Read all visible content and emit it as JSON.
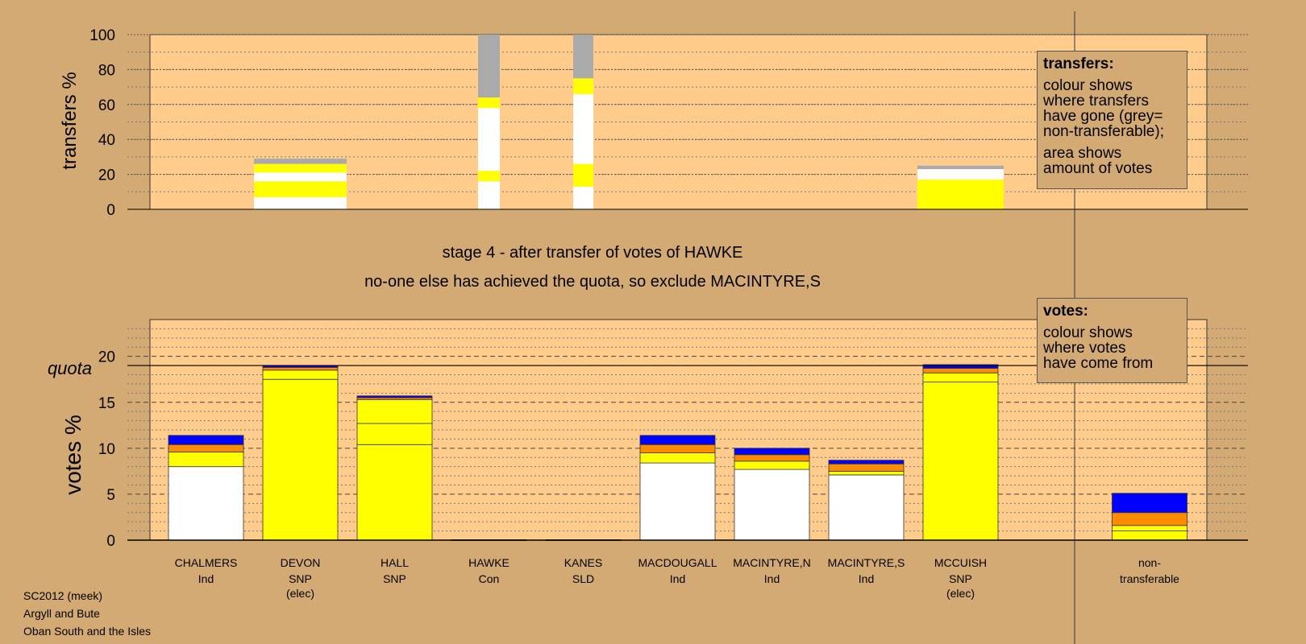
{
  "stage_title": "stage 4 - after transfer of votes of HAWKE",
  "stage_subtitle": "no-one else has achieved the quota, so exclude MACINTYRE,S",
  "footer": {
    "line1": "SC2012 (meek)",
    "line2": "Argyll and Bute",
    "line3": "Oban South and the Isles"
  },
  "transfers_legend": {
    "title": "transfers:",
    "line1": "colour shows",
    "line2": "where transfers",
    "line3": "have gone (grey=",
    "line4": "non-transferable);",
    "line5": "area shows",
    "line6": "amount of votes"
  },
  "votes_legend": {
    "title": "votes:",
    "line1": "colour shows",
    "line2": "where votes",
    "line3": "have come from"
  },
  "colors": {
    "background": "#d4aa74",
    "panel": "#ffcc8c",
    "Ind": "#ffffff",
    "SNP": "#ffff00",
    "Con": "#0000ff",
    "SLD": "#ff8c00",
    "non_transferable": "#aaaaaa"
  },
  "chart_data": [
    {
      "type": "bar",
      "stacked": true,
      "ylabel": "transfers %",
      "ylim": [
        0,
        100
      ],
      "yticks": [
        0,
        20,
        40,
        60,
        80,
        100
      ],
      "grid": true,
      "categories": [
        "CHALMERS",
        "DEVON",
        "HALL",
        "HAWKE",
        "KANES",
        "MACDOUGALL",
        "MACINTYRE,N",
        "MACINTYRE,S",
        "MCCUISH"
      ],
      "bars": [
        {
          "candidate": "DEVON",
          "segments": [
            {
              "color": "#ffffff",
              "from": 0,
              "to": 7
            },
            {
              "color": "#ffff00",
              "from": 7,
              "to": 16
            },
            {
              "color": "#ffffff",
              "from": 16,
              "to": 21
            },
            {
              "color": "#ffff00",
              "from": 21,
              "to": 26
            },
            {
              "color": "#aaaaaa",
              "from": 26,
              "to": 29
            }
          ]
        },
        {
          "candidate": "HAWKE",
          "segments": [
            {
              "color": "#ffffff",
              "from": 0,
              "to": 16
            },
            {
              "color": "#ffff00",
              "from": 16,
              "to": 22
            },
            {
              "color": "#ffffff",
              "from": 22,
              "to": 58
            },
            {
              "color": "#ffff00",
              "from": 58,
              "to": 64
            },
            {
              "color": "#aaaaaa",
              "from": 64,
              "to": 100
            }
          ]
        },
        {
          "candidate": "KANES",
          "segments": [
            {
              "color": "#ffffff",
              "from": 0,
              "to": 13
            },
            {
              "color": "#ffff00",
              "from": 13,
              "to": 26
            },
            {
              "color": "#ffffff",
              "from": 26,
              "to": 66
            },
            {
              "color": "#ffff00",
              "from": 66,
              "to": 75
            },
            {
              "color": "#aaaaaa",
              "from": 75,
              "to": 100
            }
          ]
        },
        {
          "candidate": "MCCUISH",
          "segments": [
            {
              "color": "#ffff00",
              "from": 0,
              "to": 17
            },
            {
              "color": "#ffffff",
              "from": 17,
              "to": 23
            },
            {
              "color": "#aaaaaa",
              "from": 23,
              "to": 25
            }
          ]
        }
      ]
    },
    {
      "type": "bar",
      "stacked": true,
      "ylabel": "votes %",
      "ylim": [
        0,
        24
      ],
      "yticks": [
        0,
        5,
        10,
        15,
        20
      ],
      "grid": true,
      "quota": 19,
      "quota_label": "quota",
      "categories": [
        {
          "name": "CHALMERS",
          "party": "Ind",
          "status": ""
        },
        {
          "name": "DEVON",
          "party": "SNP",
          "status": "(elec)"
        },
        {
          "name": "HALL",
          "party": "SNP",
          "status": ""
        },
        {
          "name": "HAWKE",
          "party": "Con",
          "status": ""
        },
        {
          "name": "KANES",
          "party": "SLD",
          "status": ""
        },
        {
          "name": "MACDOUGALL",
          "party": "Ind",
          "status": ""
        },
        {
          "name": "MACINTYRE,N",
          "party": "Ind",
          "status": ""
        },
        {
          "name": "MACINTYRE,S",
          "party": "Ind",
          "status": ""
        },
        {
          "name": "MCCUISH",
          "party": "SNP",
          "status": "(elec)"
        }
      ],
      "nontransferable": {
        "line1": "non-",
        "line2": "transferable"
      },
      "stacks": [
        [
          {
            "color": "#ffffff",
            "v": 8.0
          },
          {
            "color": "#ffff00",
            "v": 1.6
          },
          {
            "color": "#ff8c00",
            "v": 0.8
          },
          {
            "color": "#0000ff",
            "v": 1.0
          }
        ],
        [
          {
            "color": "#ffff00",
            "v": 17.5
          },
          {
            "color": "#ffff00",
            "v": 1.0
          },
          {
            "color": "#ff8c00",
            "v": 0.3
          },
          {
            "color": "#0000ff",
            "v": 0.2
          }
        ],
        [
          {
            "color": "#ffff00",
            "v": 10.4
          },
          {
            "color": "#ffff00",
            "v": 2.3
          },
          {
            "color": "#ffff00",
            "v": 2.6
          },
          {
            "color": "#ff8c00",
            "v": 0.2
          },
          {
            "color": "#0000ff",
            "v": 0.2
          }
        ],
        [
          {
            "color": "#0000ff",
            "v": 0.05
          }
        ],
        [
          {
            "color": "#ff8c00",
            "v": 0.05
          }
        ],
        [
          {
            "color": "#ffffff",
            "v": 8.4
          },
          {
            "color": "#ffff00",
            "v": 1.1
          },
          {
            "color": "#ff8c00",
            "v": 0.9
          },
          {
            "color": "#0000ff",
            "v": 1.0
          }
        ],
        [
          {
            "color": "#ffffff",
            "v": 7.7
          },
          {
            "color": "#ffff00",
            "v": 0.9
          },
          {
            "color": "#ff8c00",
            "v": 0.7
          },
          {
            "color": "#0000ff",
            "v": 0.7
          }
        ],
        [
          {
            "color": "#ffffff",
            "v": 7.1
          },
          {
            "color": "#ffff00",
            "v": 0.4
          },
          {
            "color": "#ff8c00",
            "v": 0.8
          },
          {
            "color": "#0000ff",
            "v": 0.4
          }
        ],
        [
          {
            "color": "#ffff00",
            "v": 17.2
          },
          {
            "color": "#ffff00",
            "v": 1.0
          },
          {
            "color": "#ff8c00",
            "v": 0.5
          },
          {
            "color": "#0000ff",
            "v": 0.4
          }
        ]
      ],
      "nontransferable_stack": [
        {
          "color": "#ffff00",
          "v": 1.0
        },
        {
          "color": "#ffff00",
          "v": 0.6
        },
        {
          "color": "#ff8c00",
          "v": 1.4
        },
        {
          "color": "#0000ff",
          "v": 2.1
        }
      ]
    }
  ]
}
